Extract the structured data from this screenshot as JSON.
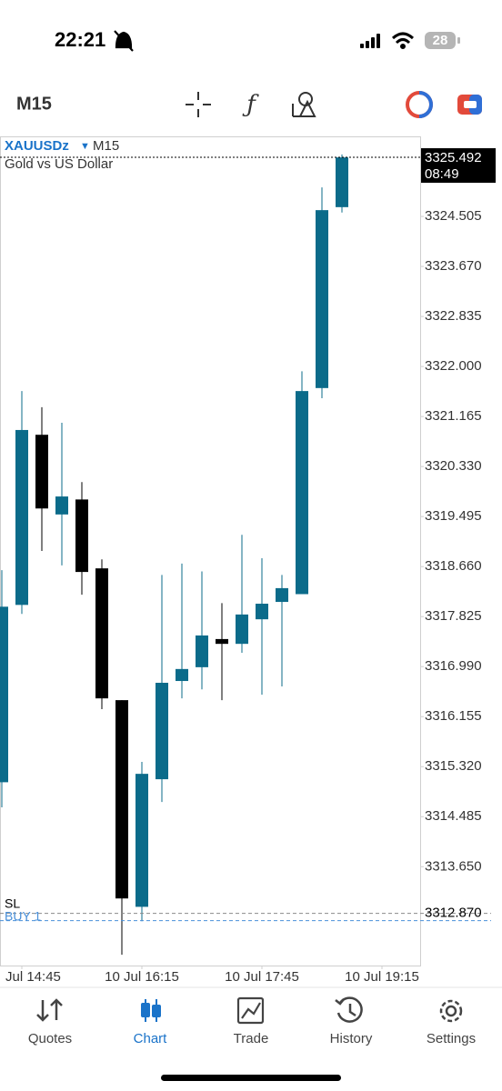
{
  "status_bar": {
    "time": "22:21",
    "battery": "28"
  },
  "toolbar": {
    "timeframe": "M15"
  },
  "chart_data": {
    "type": "candlestick",
    "symbol": "XAUUSDz",
    "timeframe": "M15",
    "description": "Gold vs US Dollar",
    "categories": [
      null,
      "Jul 14:45",
      null,
      null,
      null,
      null,
      null,
      "10 Jul 16:15",
      null,
      null,
      null,
      null,
      null,
      "10 Jul 17:45",
      null,
      null,
      null,
      null,
      null,
      "10 Jul 19:15"
    ],
    "open": [
      3315.06,
      3318.02,
      3320.86,
      3319.53,
      3319.78,
      3318.63,
      3316.43,
      3312.98,
      3315.11,
      3316.75,
      3316.98,
      3317.45,
      3317.37,
      3317.78,
      3318.07,
      3318.2,
      3321.64,
      3324.66,
      null,
      null
    ],
    "high": [
      3318.6,
      3321.59,
      3321.32,
      3321.06,
      3320.07,
      3318.78,
      3316.43,
      3315.4,
      3318.52,
      3318.71,
      3318.58,
      3318.05,
      3319.19,
      3318.8,
      3318.52,
      3321.92,
      3324.99,
      3325.54,
      null,
      null
    ],
    "low": [
      3314.64,
      3317.87,
      3318.92,
      3318.68,
      3318.19,
      3316.28,
      3312.18,
      3312.74,
      3314.73,
      3316.46,
      3316.61,
      3316.43,
      3317.22,
      3316.52,
      3316.66,
      3318.2,
      3321.47,
      3324.57,
      null,
      null
    ],
    "close": [
      3317.99,
      3320.94,
      3319.63,
      3319.83,
      3318.57,
      3316.46,
      3313.12,
      3315.2,
      3316.72,
      3316.95,
      3317.51,
      3317.37,
      3317.86,
      3318.04,
      3318.3,
      3321.59,
      3324.61,
      3325.49,
      null,
      null
    ],
    "up_color": "#0b6b8a",
    "down_color": "#000000",
    "ylim": [
      3312.0,
      3325.72
    ],
    "yticks": [
      3324.505,
      {
        "value": 3323.67,
        "label": "3323.670"
      },
      3322.835,
      {
        "value": 3322.0,
        "label": "3322.000"
      },
      3321.165,
      {
        "value": 3320.33,
        "label": "3320.330"
      },
      3319.495,
      {
        "value": 3318.66,
        "label": "3318.660"
      },
      3317.825,
      {
        "value": 3316.99,
        "label": "3316.990"
      },
      3316.155,
      {
        "value": 3315.32,
        "label": "3315.320"
      },
      3314.485,
      {
        "value": 3313.65,
        "label": "3313.650"
      }
    ],
    "current_price": 3325.492,
    "countdown": "08:49",
    "levels": [
      {
        "name": "SL",
        "value": 3312.87,
        "label": "3312.870",
        "color": "#8a8a8a"
      },
      {
        "name": "BUY 1",
        "value": 3312.75,
        "color": "#4a90d9"
      }
    ]
  },
  "tab_bar": {
    "tabs": [
      "Quotes",
      "Chart",
      "Trade",
      "History",
      "Settings"
    ],
    "active": 1
  }
}
